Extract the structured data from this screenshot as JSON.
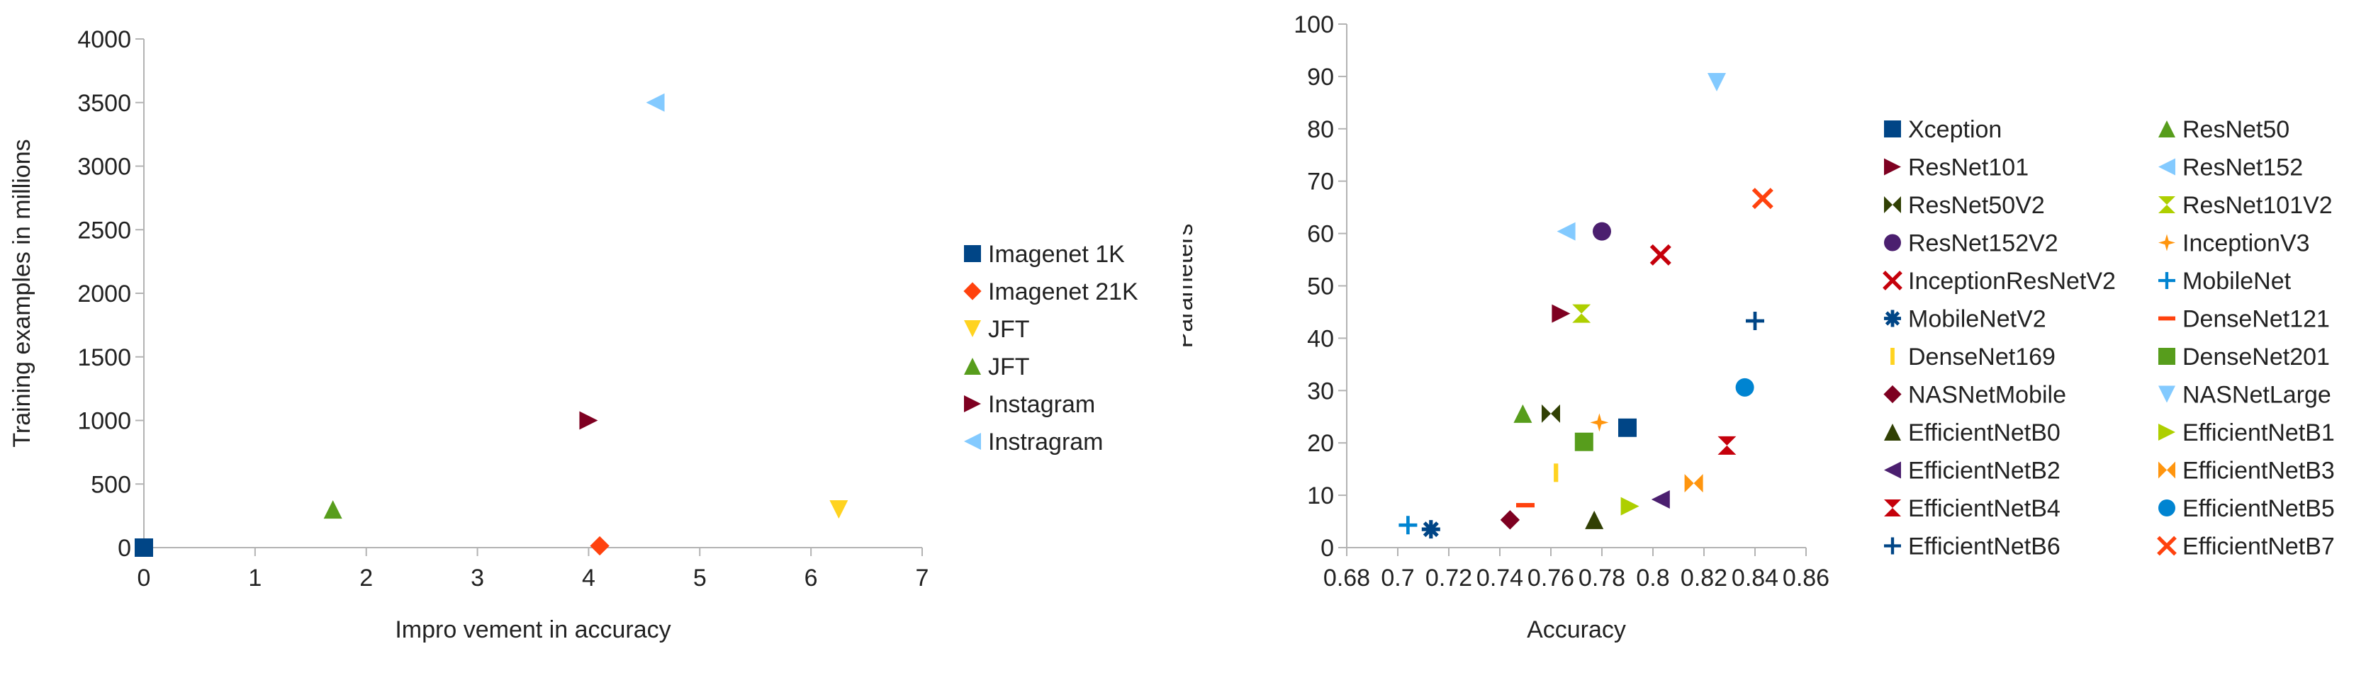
{
  "chart_data": [
    {
      "type": "scatter",
      "title": "",
      "xlabel": "Impro vement in accuracy",
      "ylabel": "Training examples in millions",
      "xlim": [
        0,
        7
      ],
      "ylim": [
        0,
        4000
      ],
      "xticks": [
        "0",
        "1",
        "2",
        "3",
        "4",
        "5",
        "6",
        "7"
      ],
      "yticks": [
        "0",
        "500",
        "1000",
        "1500",
        "2000",
        "2500",
        "3000",
        "3500",
        "4000"
      ],
      "grid": false,
      "legend": "right",
      "series": [
        {
          "name": "Imagenet 1K",
          "marker": "square",
          "color": "#004586",
          "points": [
            [
              0,
              0
            ]
          ]
        },
        {
          "name": "Imagenet 21K",
          "marker": "diamond",
          "color": "#FF420E",
          "points": [
            [
              4.1,
              14
            ]
          ]
        },
        {
          "name": "JFT",
          "marker": "triangle-down",
          "color": "#FFD320",
          "points": [
            [
              6.25,
              300
            ]
          ]
        },
        {
          "name": "JFT",
          "marker": "triangle-up",
          "color": "#579D1C",
          "points": [
            [
              1.7,
              300
            ]
          ]
        },
        {
          "name": "Instagram",
          "marker": "triangle-right",
          "color": "#7E0021",
          "points": [
            [
              4.0,
              1000
            ]
          ]
        },
        {
          "name": "Instragram",
          "marker": "triangle-left",
          "color": "#83CAFF",
          "points": [
            [
              4.6,
              3500
            ]
          ]
        }
      ]
    },
    {
      "type": "scatter",
      "title": "",
      "xlabel": "Accuracy",
      "ylabel": "Parameters",
      "xlim": [
        0.68,
        0.86
      ],
      "ylim": [
        0,
        100
      ],
      "xticks": [
        "0.68",
        "0.7",
        "0.72",
        "0.74",
        "0.76",
        "0.78",
        "0.8",
        "0.82",
        "0.84",
        "0.86"
      ],
      "yticks": [
        "0",
        "10",
        "20",
        "30",
        "40",
        "50",
        "60",
        "70",
        "80",
        "90",
        "100"
      ],
      "grid": false,
      "legend": "right",
      "series": [
        {
          "name": "Xception",
          "marker": "square",
          "color": "#004586",
          "points": [
            [
              0.79,
              22.9
            ]
          ]
        },
        {
          "name": "ResNet50",
          "marker": "triangle-up",
          "color": "#579D1C",
          "points": [
            [
              0.749,
              25.6
            ]
          ]
        },
        {
          "name": "ResNet101",
          "marker": "triangle-right",
          "color": "#7E0021",
          "points": [
            [
              0.764,
              44.7
            ]
          ]
        },
        {
          "name": "ResNet152",
          "marker": "triangle-left",
          "color": "#83CAFF",
          "points": [
            [
              0.766,
              60.4
            ]
          ]
        },
        {
          "name": "ResNet50V2",
          "marker": "bowtie",
          "color": "#314004",
          "points": [
            [
              0.76,
              25.6
            ]
          ]
        },
        {
          "name": "ResNet101V2",
          "marker": "hourglass",
          "color": "#AECF00",
          "points": [
            [
              0.772,
              44.7
            ]
          ]
        },
        {
          "name": "ResNet152V2",
          "marker": "circle",
          "color": "#4B1F6F",
          "points": [
            [
              0.78,
              60.4
            ]
          ]
        },
        {
          "name": "InceptionV3",
          "marker": "star4",
          "color": "#FF950E",
          "points": [
            [
              0.779,
              23.9
            ]
          ]
        },
        {
          "name": "InceptionResNetV2",
          "marker": "x",
          "color": "#C5000B",
          "points": [
            [
              0.803,
              55.9
            ]
          ]
        },
        {
          "name": "MobileNet",
          "marker": "plus",
          "color": "#0084D1",
          "points": [
            [
              0.704,
              4.3
            ]
          ]
        },
        {
          "name": "MobileNetV2",
          "marker": "asterisk",
          "color": "#004586",
          "points": [
            [
              0.713,
              3.5
            ]
          ]
        },
        {
          "name": "DenseNet121",
          "marker": "dash",
          "color": "#FF420E",
          "points": [
            [
              0.75,
              8.1
            ]
          ]
        },
        {
          "name": "DenseNet169",
          "marker": "vbar",
          "color": "#FFD320",
          "points": [
            [
              0.762,
              14.3
            ]
          ]
        },
        {
          "name": "DenseNet201",
          "marker": "square",
          "color": "#579D1C",
          "points": [
            [
              0.773,
              20.2
            ]
          ]
        },
        {
          "name": "NASNetMobile",
          "marker": "diamond",
          "color": "#7E0021",
          "points": [
            [
              0.744,
              5.3
            ]
          ]
        },
        {
          "name": "NASNetLarge",
          "marker": "triangle-down",
          "color": "#83CAFF",
          "points": [
            [
              0.825,
              88.9
            ]
          ]
        },
        {
          "name": "EfficientNetB0",
          "marker": "triangle-up",
          "color": "#314004",
          "points": [
            [
              0.777,
              5.3
            ]
          ]
        },
        {
          "name": "EfficientNetB1",
          "marker": "triangle-right",
          "color": "#AECF00",
          "points": [
            [
              0.791,
              7.9
            ]
          ]
        },
        {
          "name": "EfficientNetB2",
          "marker": "triangle-left",
          "color": "#4B1F6F",
          "points": [
            [
              0.803,
              9.2
            ]
          ]
        },
        {
          "name": "EfficientNetB3",
          "marker": "bowtie",
          "color": "#FF950E",
          "points": [
            [
              0.816,
              12.3
            ]
          ]
        },
        {
          "name": "EfficientNetB4",
          "marker": "hourglass",
          "color": "#C5000B",
          "points": [
            [
              0.829,
              19.5
            ]
          ]
        },
        {
          "name": "EfficientNetB5",
          "marker": "circle",
          "color": "#0084D1",
          "points": [
            [
              0.836,
              30.6
            ]
          ]
        },
        {
          "name": "EfficientNetB6",
          "marker": "plus",
          "color": "#004586",
          "points": [
            [
              0.84,
              43.3
            ]
          ]
        },
        {
          "name": "EfficientNetB7",
          "marker": "x",
          "color": "#FF420E",
          "points": [
            [
              0.843,
              66.7
            ]
          ]
        }
      ]
    }
  ]
}
